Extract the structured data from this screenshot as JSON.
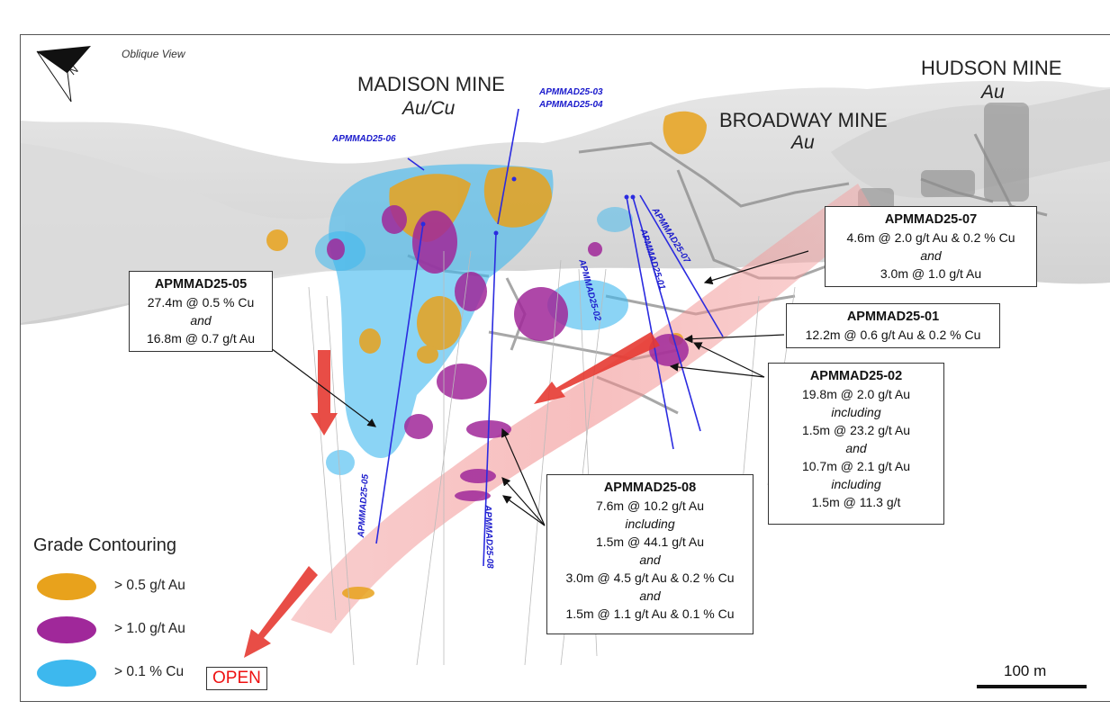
{
  "view_label": "Oblique View",
  "mines": [
    {
      "name": "MADISON MINE",
      "commodity": "Au/Cu"
    },
    {
      "name": "BROADWAY MINE",
      "commodity": "Au"
    },
    {
      "name": "HUDSON MINE",
      "commodity": "Au"
    }
  ],
  "drillhole_labels": {
    "h03": "APMMAD25-03",
    "h04": "APMMAD25-04",
    "h06": "APMMAD25-06",
    "h02": "APMMAD25-02",
    "h01": "APMMAD25-01",
    "h07": "APMMAD25-07",
    "h05": "APMMAD25-05",
    "h08": "APMMAD25-08"
  },
  "callouts": {
    "c07": {
      "title": "APMMAD25-07",
      "lines": [
        "4.6m @ 2.0 g/t Au & 0.2 % Cu",
        "and",
        "3.0m @ 1.0 g/t Au"
      ]
    },
    "c05": {
      "title": "APMMAD25-05",
      "lines": [
        "27.4m @ 0.5 % Cu",
        "and",
        "16.8m @ 0.7 g/t Au"
      ]
    },
    "c01": {
      "title": "APMMAD25-01",
      "lines": [
        "12.2m @ 0.6 g/t Au & 0.2 % Cu"
      ]
    },
    "c02": {
      "title": "APMMAD25-02",
      "lines": [
        "19.8m @ 2.0 g/t Au",
        "including",
        "1.5m @ 23.2 g/t Au",
        "and",
        "10.7m @ 2.1 g/t Au",
        "including",
        "1.5m @ 11.3 g/t"
      ]
    },
    "c08": {
      "title": "APMMAD25-08",
      "lines": [
        "7.6m @ 10.2 g/t Au",
        "including",
        "1.5m @ 44.1 g/t Au",
        "and",
        "3.0m @ 4.5 g/t Au & 0.2 % Cu",
        "and",
        "1.5m @ 1.1 g/t Au & 0.1 % Cu"
      ]
    }
  },
  "legend": {
    "title": "Grade Contouring",
    "items": [
      {
        "label": "> 0.5 g/t Au",
        "color": "#e8a21c"
      },
      {
        "label": "> 1.0 g/t Au",
        "color": "#a0289a"
      },
      {
        "label": "> 0.1 % Cu",
        "color": "#3db8ee"
      }
    ]
  },
  "open_label": "OPEN",
  "scale_bar": {
    "label": "100 m"
  }
}
